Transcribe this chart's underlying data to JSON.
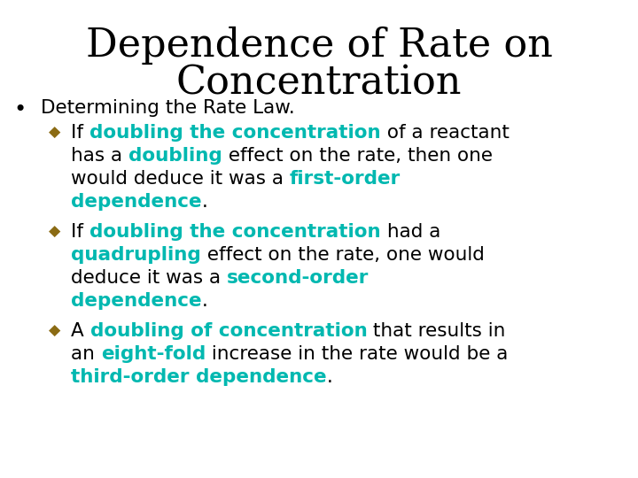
{
  "title_line1": "Dependence of Rate on",
  "title_line2": "Concentration",
  "background_color": "#ffffff",
  "title_color": "#000000",
  "title_fontsize": 32,
  "body_fontsize": 15.5,
  "diamond_color": "#8B6B14",
  "black": "#000000",
  "teal": "#00B8B0",
  "items": [
    {
      "type": "bullet",
      "indent": 0,
      "lines": [
        [
          {
            "text": "Determining the Rate Law.",
            "color": "#000000",
            "bold": false
          }
        ]
      ]
    },
    {
      "type": "diamond",
      "indent": 1,
      "lines": [
        [
          {
            "text": "If ",
            "color": "#000000",
            "bold": false
          },
          {
            "text": "doubling the concentration",
            "color": "#00B8B0",
            "bold": true
          },
          {
            "text": " of a reactant",
            "color": "#000000",
            "bold": false
          }
        ],
        [
          {
            "text": "has a ",
            "color": "#000000",
            "bold": false
          },
          {
            "text": "doubling",
            "color": "#00B8B0",
            "bold": true
          },
          {
            "text": " effect on the rate, then one",
            "color": "#000000",
            "bold": false
          }
        ],
        [
          {
            "text": "would deduce it was a ",
            "color": "#000000",
            "bold": false
          },
          {
            "text": "first-order",
            "color": "#00B8B0",
            "bold": true
          }
        ],
        [
          {
            "text": "dependence",
            "color": "#00B8B0",
            "bold": true
          },
          {
            "text": ".",
            "color": "#000000",
            "bold": false
          }
        ]
      ]
    },
    {
      "type": "diamond",
      "indent": 1,
      "lines": [
        [
          {
            "text": "If ",
            "color": "#000000",
            "bold": false
          },
          {
            "text": "doubling the concentration",
            "color": "#00B8B0",
            "bold": true
          },
          {
            "text": " had a",
            "color": "#000000",
            "bold": false
          }
        ],
        [
          {
            "text": "quadrupling",
            "color": "#00B8B0",
            "bold": true
          },
          {
            "text": " effect on the rate, one would",
            "color": "#000000",
            "bold": false
          }
        ],
        [
          {
            "text": "deduce it was a ",
            "color": "#000000",
            "bold": false
          },
          {
            "text": "second-order",
            "color": "#00B8B0",
            "bold": true
          }
        ],
        [
          {
            "text": "dependence",
            "color": "#00B8B0",
            "bold": true
          },
          {
            "text": ".",
            "color": "#000000",
            "bold": false
          }
        ]
      ]
    },
    {
      "type": "diamond",
      "indent": 1,
      "lines": [
        [
          {
            "text": "A ",
            "color": "#000000",
            "bold": false
          },
          {
            "text": "doubling of concentration",
            "color": "#00B8B0",
            "bold": true
          },
          {
            "text": " that results in",
            "color": "#000000",
            "bold": false
          }
        ],
        [
          {
            "text": "an ",
            "color": "#000000",
            "bold": false
          },
          {
            "text": "eight-fold",
            "color": "#00B8B0",
            "bold": true
          },
          {
            "text": " increase in the rate would be a",
            "color": "#000000",
            "bold": false
          }
        ],
        [
          {
            "text": "third-order dependence",
            "color": "#00B8B0",
            "bold": true
          },
          {
            "text": ".",
            "color": "#000000",
            "bold": false
          }
        ]
      ]
    }
  ]
}
